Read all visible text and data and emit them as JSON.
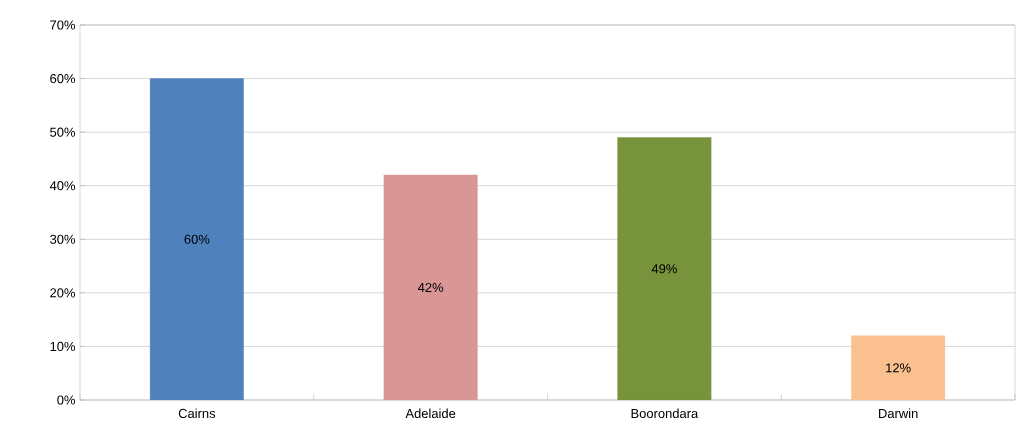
{
  "chart_data": {
    "type": "bar",
    "categories": [
      "Cairns",
      "Adelaide",
      "Boorondara",
      "Darwin"
    ],
    "values": [
      60,
      42,
      49,
      12
    ],
    "colors": [
      "#4f81bd",
      "#d99694",
      "#77933c",
      "#fac090"
    ],
    "value_labels": [
      "60%",
      "42%",
      "49%",
      "12%"
    ],
    "ylim": [
      0,
      70
    ],
    "yticks": [
      {
        "value": 0,
        "label": "0%"
      },
      {
        "value": 10,
        "label": "10%"
      },
      {
        "value": 20,
        "label": "20%"
      },
      {
        "value": 30,
        "label": "30%"
      },
      {
        "value": 40,
        "label": "40%"
      },
      {
        "value": 50,
        "label": "50%"
      },
      {
        "value": 60,
        "label": "60%"
      },
      {
        "value": 70,
        "label": "70%"
      }
    ],
    "grid": "y"
  }
}
